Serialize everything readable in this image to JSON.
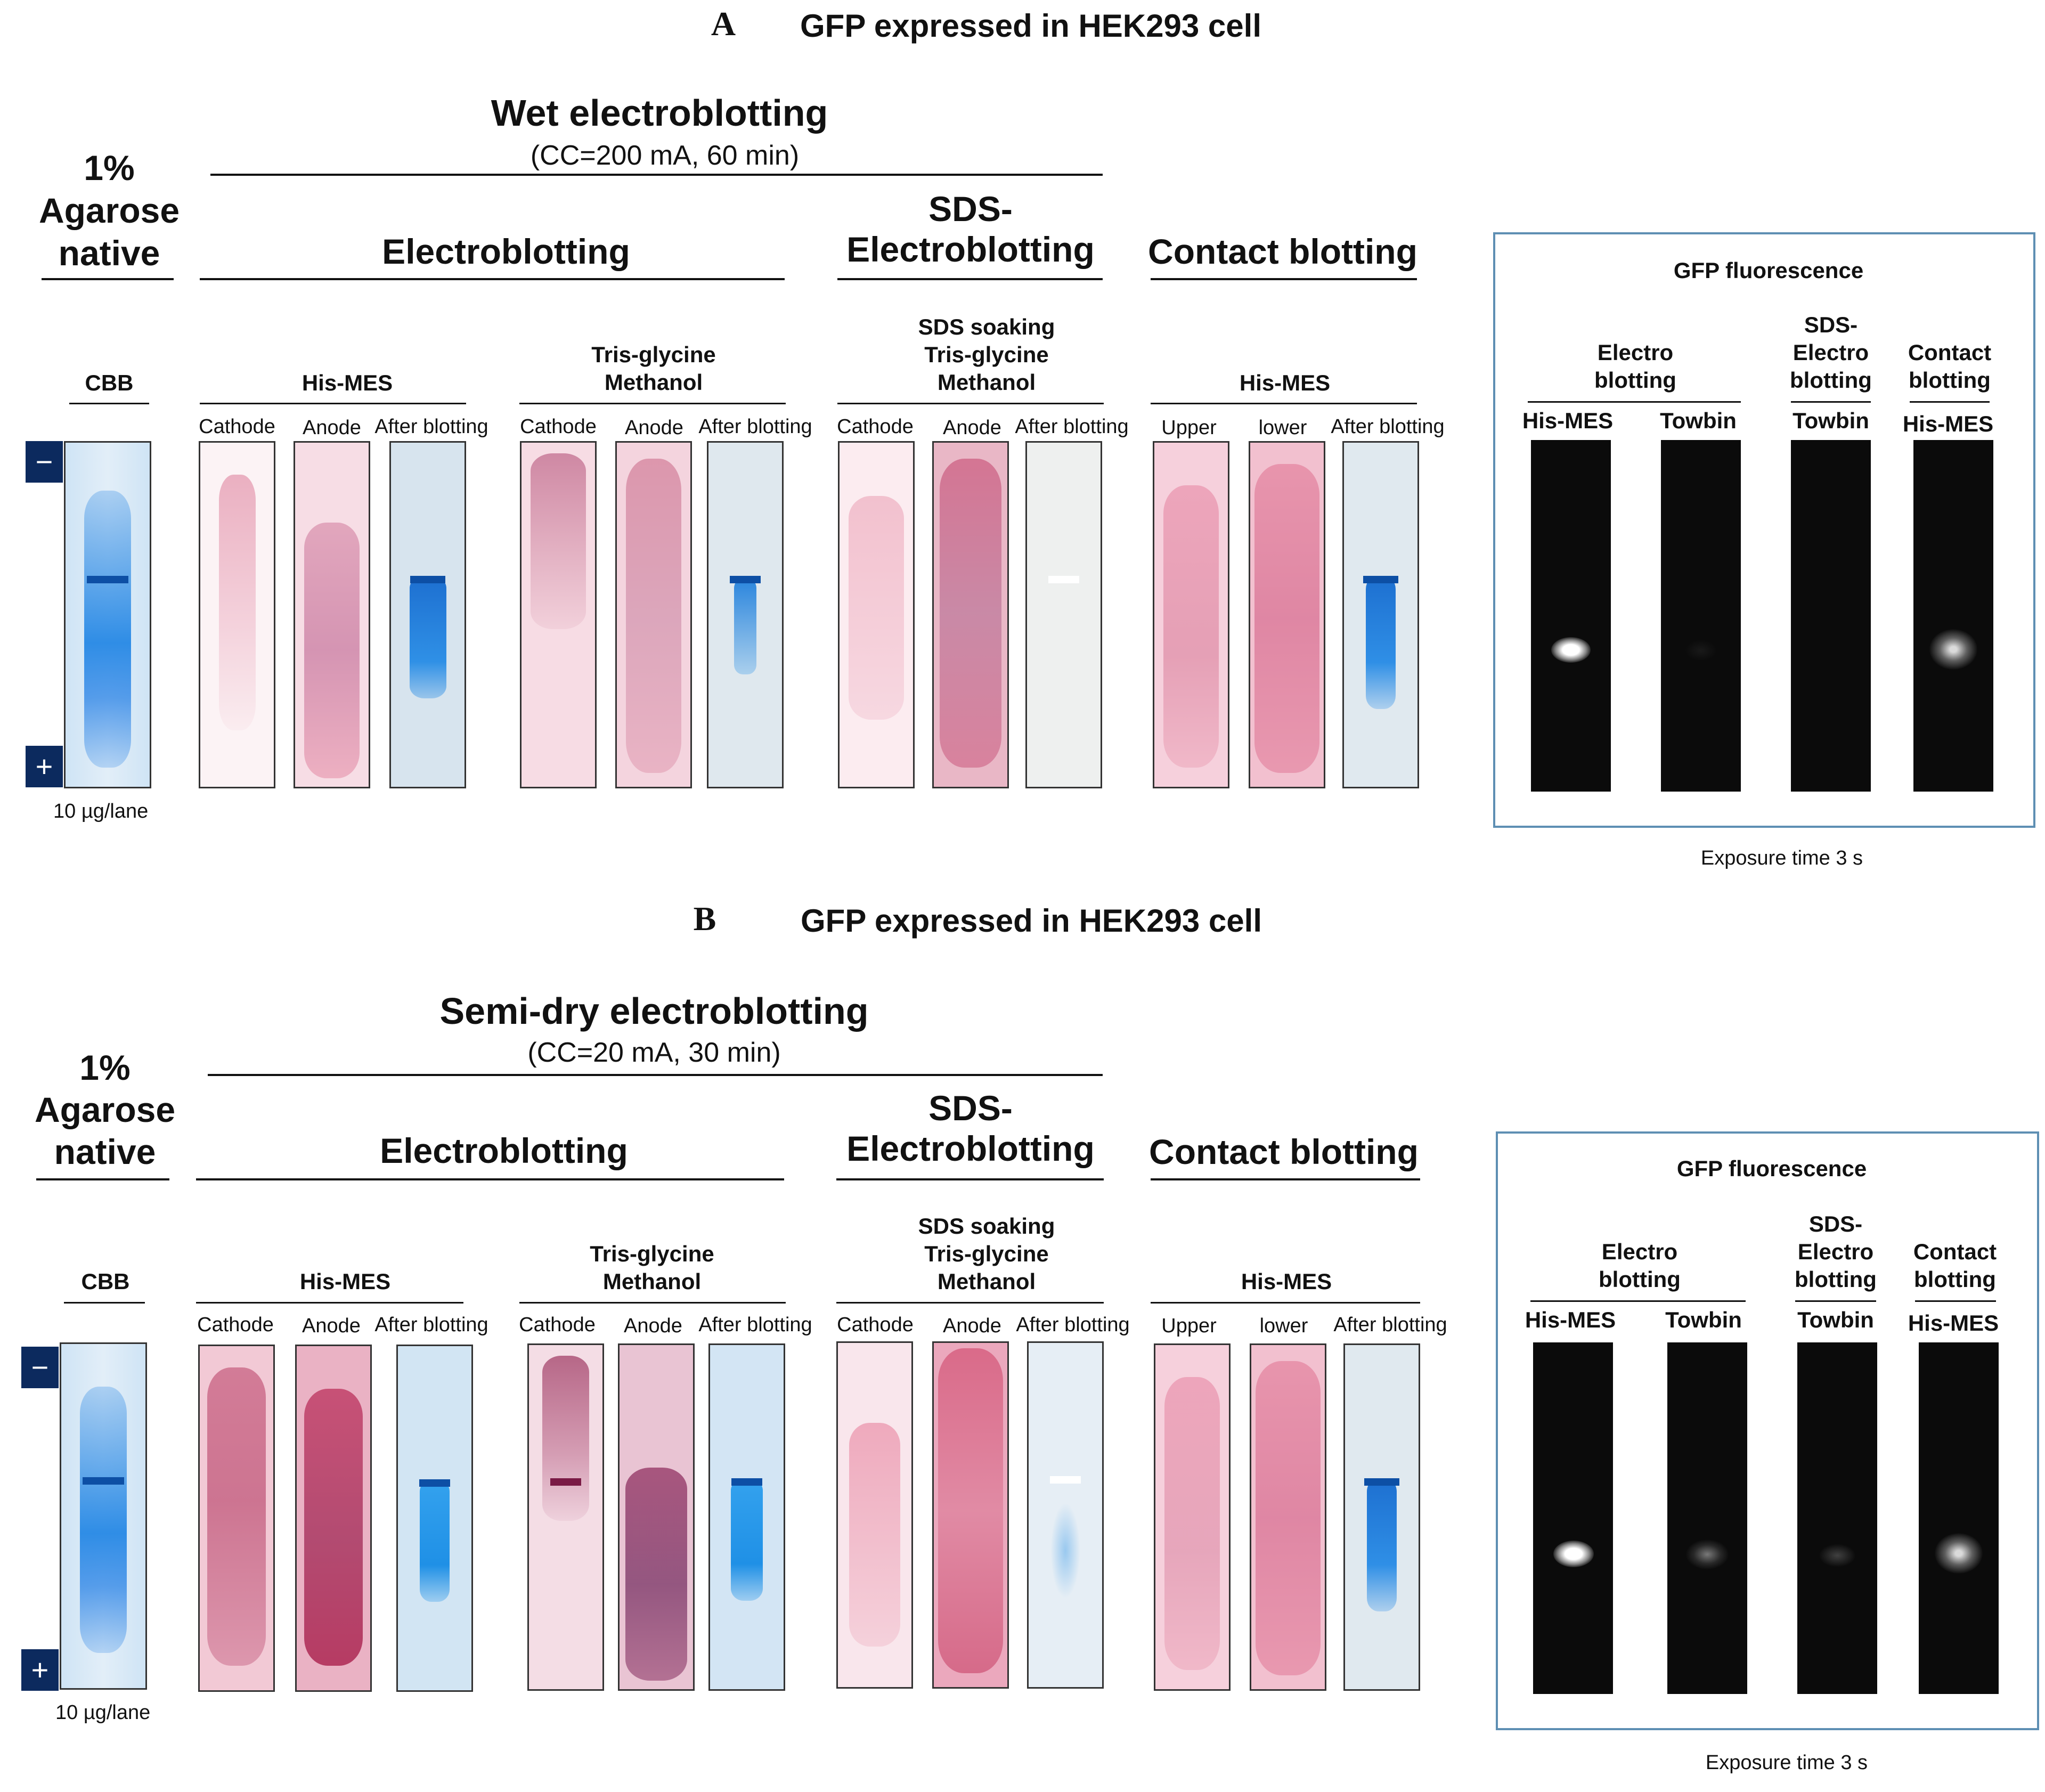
{
  "panels": [
    {
      "letter": "A",
      "title": "GFP expressed in HEK293 cell",
      "agarose": [
        "1%",
        "Agarose",
        "native"
      ],
      "method_title": "Wet electroblotting",
      "method_condition": "(CC=200 mA, 60 min)",
      "cbb_label": "CBB",
      "minus": "−",
      "plus": "+",
      "load": "10 µg/lane",
      "sections": {
        "electro": "Electroblotting",
        "sds": [
          "SDS-",
          "Electroblotting"
        ],
        "contact": "Contact blotting"
      },
      "buffers": {
        "his_mes": "His-MES",
        "tris": [
          "Tris-glycine",
          "Methanol"
        ],
        "sds_soak": [
          "SDS soaking",
          "Tris-glycine",
          "Methanol"
        ],
        "contact_his_mes": "His-MES"
      },
      "lane_labels": [
        "Cathode",
        "Anode",
        "After blotting",
        "Cathode",
        "Anode",
        "After blotting",
        "Cathode",
        "Anode",
        "After blotting",
        "Upper",
        "lower",
        "After blotting"
      ],
      "fluorescence": {
        "title": "GFP fluorescence",
        "electro": [
          "Electro",
          "blotting"
        ],
        "sds": [
          "SDS-",
          "Electro",
          "blotting"
        ],
        "contact": [
          "Contact",
          "blotting"
        ],
        "lanes": [
          "His-MES",
          "Towbin",
          "Towbin",
          "His-MES"
        ],
        "exposure": "Exposure time  3 s"
      }
    },
    {
      "letter": "B",
      "title": "GFP expressed in HEK293 cell",
      "agarose": [
        "1%",
        "Agarose",
        "native"
      ],
      "method_title": "Semi-dry electroblotting",
      "method_condition": "(CC=20 mA, 30 min)",
      "cbb_label": "CBB",
      "minus": "−",
      "plus": "+",
      "load": "10 µg/lane",
      "sections": {
        "electro": "Electroblotting",
        "sds": [
          "SDS-",
          "Electroblotting"
        ],
        "contact": "Contact blotting"
      },
      "buffers": {
        "his_mes": "His-MES",
        "tris": [
          "Tris-glycine",
          "Methanol"
        ],
        "sds_soak": [
          "SDS soaking",
          "Tris-glycine",
          "Methanol"
        ],
        "contact_his_mes": "His-MES"
      },
      "lane_labels": [
        "Cathode",
        "Anode",
        "After blotting",
        "Cathode",
        "Anode",
        "After blotting",
        "Cathode",
        "Anode",
        "After blotting",
        "Upper",
        "lower",
        "After blotting"
      ],
      "fluorescence": {
        "title": "GFP fluorescence",
        "electro": [
          "Electro",
          "blotting"
        ],
        "sds": [
          "SDS-",
          "Electro",
          "blotting"
        ],
        "contact": [
          "Contact",
          "blotting"
        ],
        "lanes": [
          "His-MES",
          "Towbin",
          "Towbin",
          "His-MES"
        ],
        "exposure": "Exposure time  3 s"
      }
    }
  ],
  "colors": {
    "pink_light": "#f6dbe2",
    "pink_mid": "#e79db2",
    "pink_deep": "#c9577b",
    "blue_stain": "#1f86e0",
    "blue_bg": "#dbe8f2",
    "fluor_frame": "#5e8fb3"
  }
}
